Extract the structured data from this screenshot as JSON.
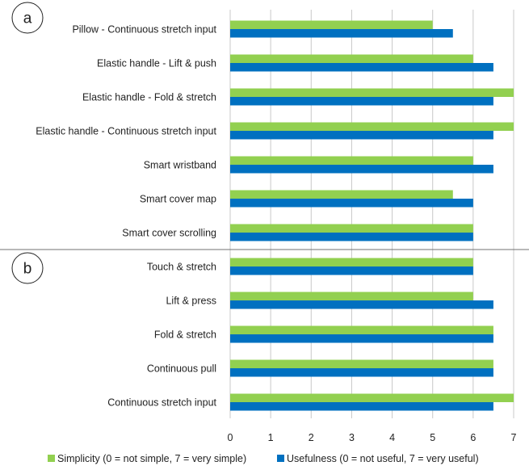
{
  "chart_data": {
    "type": "bar",
    "orientation": "horizontal",
    "title": "",
    "xlabel": "",
    "ylabel": "",
    "xlim": [
      0,
      7
    ],
    "xticks": [
      "0",
      "1",
      "2",
      "3",
      "4",
      "5",
      "6",
      "7"
    ],
    "grid": "vertical",
    "legend_position": "bottom",
    "panels": [
      {
        "label": "a",
        "categories": [
          "Pillow - Continuous stretch input",
          "Elastic handle - Lift & push",
          "Elastic handle - Fold & stretch",
          "Elastic handle - Continuous stretch input",
          "Smart wristband",
          "Smart cover map",
          "Smart cover scrolling"
        ],
        "series": [
          {
            "name": "Simplicity (0 = not simple, 7 = very simple)",
            "color": "#92d050",
            "values": [
              5,
              6,
              7,
              7,
              6,
              5.5,
              6
            ]
          },
          {
            "name": "Usefulness (0 = not useful, 7 = very useful)",
            "color": "#0070c0",
            "values": [
              5.5,
              6.5,
              6.5,
              6.5,
              6.5,
              6,
              6
            ]
          }
        ]
      },
      {
        "label": "b",
        "categories": [
          "Touch & stretch",
          "Lift & press",
          "Fold & stretch",
          "Continuous pull",
          "Continuous stretch input"
        ],
        "series": [
          {
            "name": "Simplicity (0 = not simple, 7 = very simple)",
            "color": "#92d050",
            "values": [
              6,
              6,
              6.5,
              6.5,
              7
            ]
          },
          {
            "name": "Usefulness (0 = not useful, 7 = very useful)",
            "color": "#0070c0",
            "values": [
              6,
              6.5,
              6.5,
              6.5,
              6.5
            ]
          }
        ]
      }
    ],
    "legend": [
      {
        "name": "Simplicity (0 = not simple, 7 = very simple)",
        "color": "#92d050"
      },
      {
        "name": "Usefulness (0 = not useful, 7 = very useful)",
        "color": "#0070c0"
      }
    ]
  }
}
